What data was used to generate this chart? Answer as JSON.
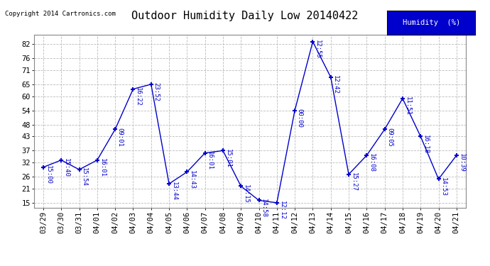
{
  "title": "Outdoor Humidity Daily Low 20140422",
  "copyright": "Copyright 2014 Cartronics.com",
  "legend_label": "Humidity  (%)",
  "x_labels": [
    "03/29",
    "03/30",
    "03/31",
    "04/01",
    "04/02",
    "04/03",
    "04/04",
    "04/05",
    "04/06",
    "04/07",
    "04/08",
    "04/09",
    "04/10",
    "04/11",
    "04/12",
    "04/13",
    "04/14",
    "04/15",
    "04/16",
    "04/17",
    "04/18",
    "04/19",
    "04/20",
    "04/21"
  ],
  "y_values": [
    30,
    33,
    29,
    33,
    46,
    63,
    65,
    23,
    28,
    36,
    37,
    22,
    16,
    15,
    54,
    83,
    68,
    27,
    35,
    46,
    59,
    43,
    25,
    35
  ],
  "time_labels": [
    "15:00",
    "15:40",
    "15:54",
    "16:01",
    "09:01",
    "16:22",
    "23:52",
    "13:44",
    "14:43",
    "16:01",
    "15:01",
    "14:15",
    "14:58",
    "12:12",
    "00:00",
    "12:55",
    "12:42",
    "15:27",
    "16:08",
    "09:05",
    "11:51",
    "16:18",
    "14:53",
    "10:39"
  ],
  "ylim": [
    13,
    86
  ],
  "yticks": [
    15,
    21,
    26,
    32,
    37,
    43,
    48,
    54,
    60,
    65,
    71,
    76,
    82
  ],
  "line_color": "#0000cc",
  "marker": "+",
  "bg_color": "#ffffff",
  "grid_color": "#bbbbbb",
  "title_fontsize": 11,
  "tick_fontsize": 7.5,
  "annot_fontsize": 6.5
}
